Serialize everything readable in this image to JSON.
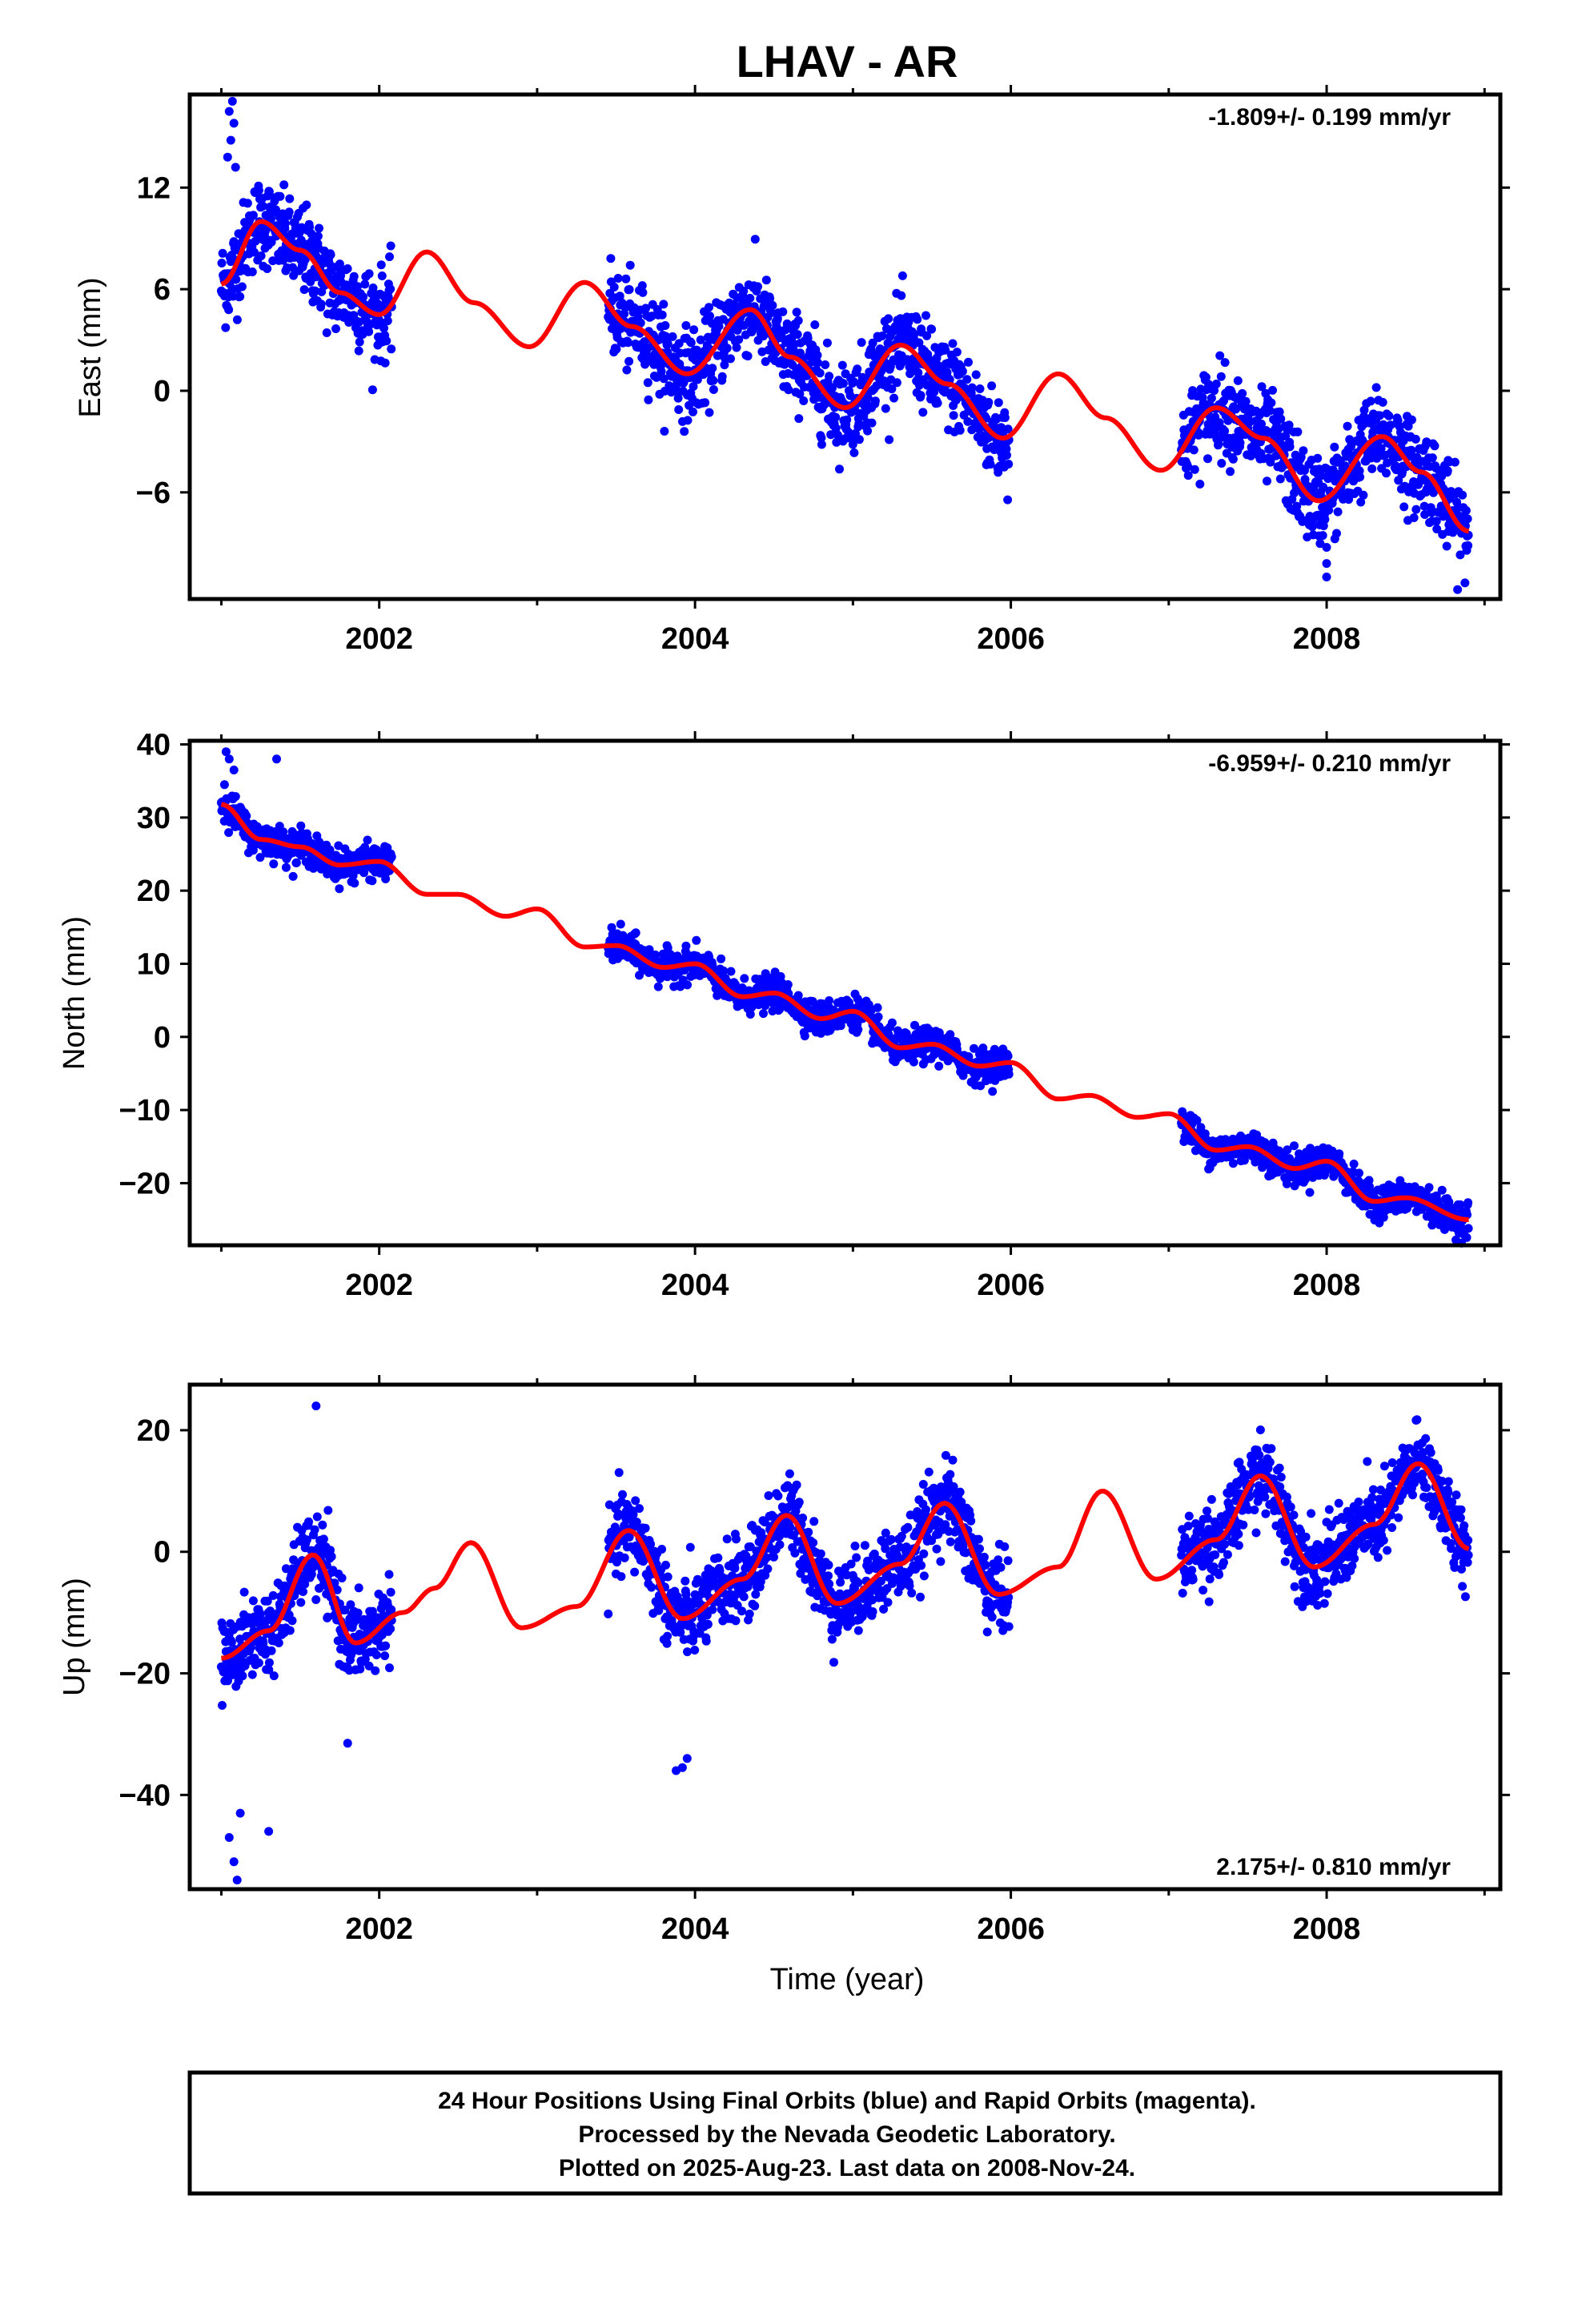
{
  "title": "LHAV - AR",
  "x_axis_label": "Time (year)",
  "footer": [
    "24 Hour Positions Using Final Orbits (blue) and Rapid Orbits (magenta).",
    "Processed by the Nevada Geodetic Laboratory.",
    "Plotted on 2025-Aug-23. Last data on 2008-Nov-24."
  ],
  "colors": {
    "points": "#0000ff",
    "model": "#ff0000",
    "frame": "#000000"
  },
  "chart_data": [
    {
      "type": "scatter",
      "ylabel": "East (mm)",
      "rate_text": "-1.809+/- 0.199 mm/yr",
      "rate_position": "top-right",
      "xlim": [
        2000.8,
        2009.1
      ],
      "ylim": [
        -12.3,
        17.5
      ],
      "x_ticks": [
        2002,
        2004,
        2006,
        2008
      ],
      "y_ticks": [
        12,
        6,
        0,
        -6
      ],
      "x_tick_labels": [
        "2002",
        "2004",
        "2006",
        "2008"
      ],
      "y_tick_labels": [
        "12",
        "6",
        "0",
        "−6"
      ],
      "series": [
        {
          "kind": "points",
          "data_spans": [
            [
              2001.0,
              2002.08
            ],
            [
              2003.45,
              2005.99
            ],
            [
              2007.08,
              2008.9
            ]
          ],
          "outliers": [
            [
              2001.05,
              16.5
            ],
            [
              2001.07,
              17.1
            ],
            [
              2001.08,
              15.8
            ],
            [
              2001.06,
              14.8
            ],
            [
              2001.04,
              13.8
            ],
            [
              2001.09,
              13.2
            ],
            [
              2001.02,
              5.6
            ],
            [
              2008.0,
              -11.0
            ],
            [
              2008.0,
              -10.2
            ]
          ],
          "scatter_sd": 1.3
        },
        {
          "kind": "model",
          "x": [
            2001.0,
            2001.25,
            2001.5,
            2001.75,
            2002.0,
            2002.3,
            2002.6,
            2002.95,
            2003.3,
            2003.6,
            2003.95,
            2004.35,
            2004.6,
            2004.95,
            2005.3,
            2005.6,
            2005.95,
            2006.3,
            2006.6,
            2006.95,
            2007.3,
            2007.6,
            2007.95,
            2008.35,
            2008.6,
            2008.9
          ],
          "y": [
            6.3,
            10.0,
            8.3,
            5.8,
            4.5,
            8.2,
            5.2,
            2.6,
            6.4,
            3.8,
            1.0,
            4.8,
            2.0,
            -1.0,
            2.7,
            0.4,
            -2.8,
            1.0,
            -1.6,
            -4.7,
            -1.0,
            -2.8,
            -6.5,
            -2.7,
            -4.8,
            -8.3
          ]
        }
      ]
    },
    {
      "type": "scatter",
      "ylabel": "North (mm)",
      "rate_text": "-6.959+/- 0.210 mm/yr",
      "rate_position": "top-right",
      "xlim": [
        2000.8,
        2009.1
      ],
      "ylim": [
        -28.5,
        40.5
      ],
      "x_ticks": [
        2002,
        2004,
        2006,
        2008
      ],
      "y_ticks": [
        40,
        30,
        20,
        10,
        0,
        -10,
        -20
      ],
      "x_tick_labels": [
        "2002",
        "2004",
        "2006",
        "2008"
      ],
      "y_tick_labels": [
        "40",
        "30",
        "20",
        "10",
        "0",
        "−10",
        "−20"
      ],
      "series": [
        {
          "kind": "points",
          "data_spans": [
            [
              2001.0,
              2002.08
            ],
            [
              2003.45,
              2005.99
            ],
            [
              2007.08,
              2008.9
            ]
          ],
          "outliers": [
            [
              2001.03,
              39.0
            ],
            [
              2001.05,
              38.0
            ],
            [
              2001.08,
              36.5
            ],
            [
              2001.35,
              38.0
            ],
            [
              2001.02,
              34.5
            ]
          ],
          "scatter_sd": 1.1
        },
        {
          "kind": "model",
          "x": [
            2001.0,
            2001.25,
            2001.5,
            2001.75,
            2002.0,
            2002.3,
            2002.5,
            2002.8,
            2003.0,
            2003.3,
            2003.5,
            2003.8,
            2004.0,
            2004.3,
            2004.5,
            2004.8,
            2005.0,
            2005.3,
            2005.5,
            2005.8,
            2006.0,
            2006.3,
            2006.5,
            2006.8,
            2007.0,
            2007.3,
            2007.5,
            2007.8,
            2008.0,
            2008.3,
            2008.5,
            2008.9
          ],
          "y": [
            31.8,
            27.0,
            26.0,
            23.5,
            24.0,
            19.5,
            19.5,
            16.5,
            17.5,
            12.3,
            12.5,
            9.5,
            10.0,
            5.5,
            6.0,
            2.5,
            3.5,
            -1.5,
            -1.0,
            -4.0,
            -3.5,
            -8.5,
            -8.0,
            -11.0,
            -10.5,
            -15.5,
            -15.0,
            -18.0,
            -17.0,
            -22.5,
            -22.0,
            -25.0
          ]
        }
      ]
    },
    {
      "type": "scatter",
      "ylabel": "Up (mm)",
      "rate_text": "2.175+/- 0.810 mm/yr",
      "rate_position": "bottom-right",
      "xlim": [
        2000.8,
        2009.1
      ],
      "ylim": [
        -55.5,
        27.5
      ],
      "x_ticks": [
        2002,
        2004,
        2006,
        2008
      ],
      "y_ticks": [
        20,
        0,
        -20,
        -40
      ],
      "x_tick_labels": [
        "2002",
        "2004",
        "2006",
        "2008"
      ],
      "y_tick_labels": [
        "20",
        "0",
        "−20",
        "−40"
      ],
      "series": [
        {
          "kind": "points",
          "data_spans": [
            [
              2001.0,
              2002.08
            ],
            [
              2003.45,
              2005.99
            ],
            [
              2007.08,
              2008.9
            ]
          ],
          "outliers": [
            [
              2001.1,
              -54.0
            ],
            [
              2001.08,
              -51.0
            ],
            [
              2001.05,
              -47.0
            ],
            [
              2001.12,
              -43.0
            ],
            [
              2001.3,
              -46.0
            ],
            [
              2001.6,
              24.0
            ],
            [
              2001.8,
              -31.5
            ],
            [
              2003.88,
              -36.0
            ],
            [
              2003.92,
              -35.5
            ],
            [
              2003.95,
              -34.0
            ]
          ],
          "scatter_sd": 3.2
        },
        {
          "kind": "model",
          "x": [
            2001.0,
            2001.3,
            2001.58,
            2001.85,
            2002.15,
            2002.35,
            2002.58,
            2002.9,
            2003.25,
            2003.58,
            2003.92,
            2004.3,
            2004.58,
            2004.9,
            2005.3,
            2005.58,
            2005.92,
            2006.3,
            2006.58,
            2006.92,
            2007.3,
            2007.58,
            2007.92,
            2008.3,
            2008.58,
            2008.9
          ],
          "y": [
            -17.5,
            -13.0,
            -0.5,
            -15.0,
            -10.0,
            -6.0,
            1.5,
            -12.5,
            -9.0,
            3.5,
            -11.0,
            -4.5,
            6.0,
            -8.5,
            -2.0,
            8.0,
            -7.0,
            -2.5,
            10.0,
            -4.5,
            2.0,
            12.5,
            -2.5,
            4.5,
            14.5,
            0.5
          ]
        }
      ]
    }
  ]
}
